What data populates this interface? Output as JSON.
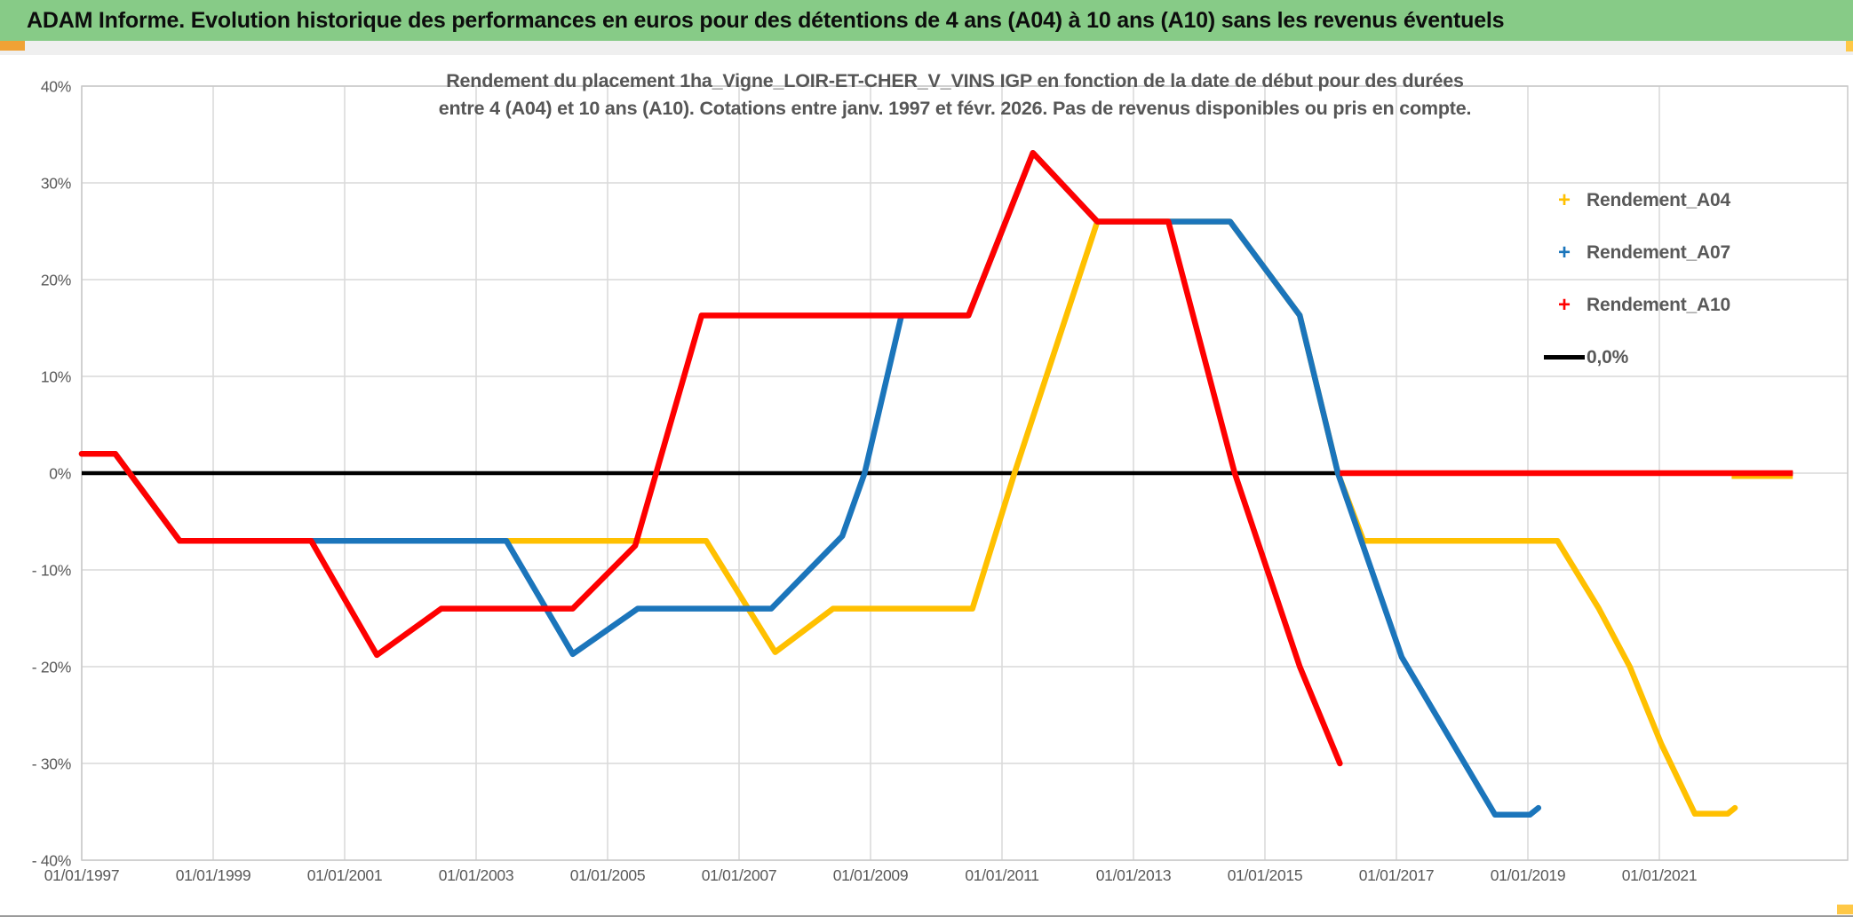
{
  "header": {
    "title": "ADAM Informe. Evolution historique des performances en euros pour des détentions de 4 ans (A04) à 10 ans (A10) sans les revenus éventuels"
  },
  "chart": {
    "title_line1": "Rendement du placement 1ha_Vigne_LOIR-ET-CHER_V_VINS IGP en fonction de la date de début pour des durées",
    "title_line2": "entre 4 (A04) et 10 ans (A10). Cotations entre janv. 1997 et févr. 2026. Pas de revenus disponibles ou pris en compte.",
    "legend": [
      {
        "label": "Rendement_A04",
        "marker": "plus",
        "color": "#FFC000"
      },
      {
        "label": "Rendement_A07",
        "marker": "plus",
        "color": "#1B75BB"
      },
      {
        "label": "Rendement_A10",
        "marker": "plus",
        "color": "#FE0000"
      },
      {
        "label": "0,0%",
        "marker": "line",
        "color": "#000000"
      }
    ],
    "colors": {
      "a04": "#FFC000",
      "a07": "#1B75BB",
      "a10": "#FE0000",
      "zero_line": "#000000",
      "grid": "#D9D9D9",
      "plot_border": "#C8C8C8",
      "axis_text": "#595959",
      "header_green": "#87CB87",
      "accent_orange": "#F0A235",
      "accent_gold": "#FFC846"
    }
  },
  "chart_data": {
    "type": "line",
    "title": "Rendement du placement 1ha_Vigne_LOIR-ET-CHER_V_VINS IGP en fonction de la date de début pour des durées entre 4 (A04) et 10 ans (A10). Cotations entre janv. 1997 et févr. 2026. Pas de revenus disponibles ou pris en compte.",
    "x_unit": "years_since_1997-01-01",
    "y_unit": "percent",
    "x_axis": {
      "min": 0,
      "max": 26.87,
      "tick_years": [
        0,
        2,
        4,
        6,
        8,
        10,
        12,
        14,
        16,
        18,
        20,
        22,
        24
      ],
      "tick_labels": [
        "01/01/1997",
        "01/01/1999",
        "01/01/2001",
        "01/01/2003",
        "01/01/2005",
        "01/01/2007",
        "01/01/2009",
        "01/01/2011",
        "01/01/2013",
        "01/01/2015",
        "01/01/2017",
        "01/01/2019",
        "01/01/2021"
      ]
    },
    "y_axis": {
      "min": -40,
      "max": 40,
      "ticks": [
        40,
        30,
        20,
        10,
        0,
        -10,
        -20,
        -30,
        -40
      ],
      "tick_labels": [
        "40%",
        "30%",
        "20%",
        "10%",
        "0%",
        "- 10%",
        "- 20%",
        "- 30%",
        "- 40%"
      ]
    },
    "grid": true,
    "legend_position": "inside-top-right",
    "zero_line": {
      "label": "0,0%",
      "color": "#000000",
      "width": 4.5,
      "points": [
        [
          0,
          0
        ],
        [
          26.03,
          0
        ]
      ]
    },
    "series": [
      {
        "name": "Rendement_A04",
        "color": "#FFC000",
        "points": [
          [
            0,
            2
          ],
          [
            0.51,
            2
          ],
          [
            1.49,
            -7
          ],
          [
            9.5,
            -7
          ],
          [
            10.55,
            -18.5
          ],
          [
            11.43,
            -14
          ],
          [
            13.55,
            -14
          ],
          [
            14.19,
            0
          ],
          [
            15.45,
            26
          ],
          [
            17.47,
            26
          ],
          [
            18.53,
            16.3
          ],
          [
            19.11,
            0
          ],
          [
            19.5,
            -7
          ],
          [
            22.45,
            -7
          ],
          [
            23.08,
            -14
          ],
          [
            23.55,
            -20
          ],
          [
            24.03,
            -28
          ],
          [
            24.54,
            -35.2
          ],
          [
            25.04,
            -35.2
          ],
          [
            25.15,
            -34.6
          ]
        ],
        "extra_segments": [
          [
            [
              25.1,
              -0.3
            ],
            [
              26.03,
              -0.3
            ]
          ]
        ]
      },
      {
        "name": "Rendement_A07",
        "color": "#1B75BB",
        "points": [
          [
            0,
            2
          ],
          [
            0.51,
            2
          ],
          [
            1.49,
            -7
          ],
          [
            6.46,
            -7
          ],
          [
            7.47,
            -18.7
          ],
          [
            8.46,
            -14
          ],
          [
            10.49,
            -14
          ],
          [
            11.57,
            -6.5
          ],
          [
            11.91,
            0
          ],
          [
            12.47,
            16.3
          ],
          [
            13.49,
            16.3
          ],
          [
            14.47,
            33.1
          ],
          [
            15.45,
            26
          ],
          [
            17.47,
            26
          ],
          [
            18.53,
            16.3
          ],
          [
            19.11,
            0
          ],
          [
            20.08,
            -19
          ],
          [
            21.5,
            -35.3
          ],
          [
            22.03,
            -35.3
          ],
          [
            22.16,
            -34.6
          ]
        ],
        "extra_segments": []
      },
      {
        "name": "Rendement_A10",
        "color": "#FE0000",
        "points": [
          [
            0,
            2
          ],
          [
            0.51,
            2
          ],
          [
            1.49,
            -7
          ],
          [
            3.49,
            -7
          ],
          [
            4.49,
            -18.8
          ],
          [
            5.47,
            -14
          ],
          [
            7.47,
            -14
          ],
          [
            8.42,
            -7.5
          ],
          [
            9.43,
            16.3
          ],
          [
            13.49,
            16.3
          ],
          [
            14.47,
            33.1
          ],
          [
            15.45,
            26
          ],
          [
            16.53,
            26
          ],
          [
            17.54,
            0
          ],
          [
            18.53,
            -20
          ],
          [
            19.14,
            -30
          ]
        ],
        "extra_segments": [
          [
            [
              19.14,
              0
            ],
            [
              26.03,
              0
            ]
          ]
        ]
      }
    ]
  }
}
